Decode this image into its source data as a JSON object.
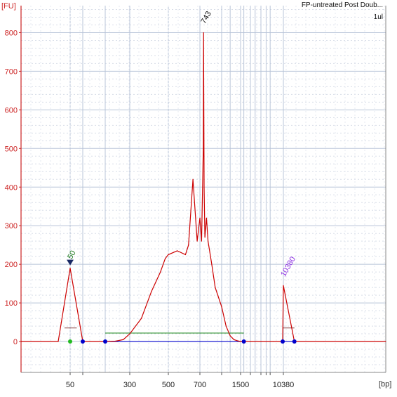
{
  "chart_data": {
    "type": "line",
    "title": "FP-untreated Post Doub...",
    "subtitle": "1ul",
    "ylabel": "[FU]",
    "xlabel": "[bp]",
    "x_scale": "electropherogram (nonlinear bp)",
    "ylim": [
      -80,
      870
    ],
    "y_ticks": [
      0,
      100,
      200,
      300,
      400,
      500,
      600,
      700,
      800
    ],
    "x_tick_labels": [
      "50",
      "300",
      "500",
      "700",
      "1500",
      "10380"
    ],
    "grid": true,
    "series": [
      {
        "color": "#cc0000",
        "x": [
          20,
          40,
          50,
          60,
          80,
          100,
          150,
          200,
          250,
          300,
          350,
          400,
          450,
          480,
          500,
          550,
          600,
          620,
          650,
          680,
          700,
          720,
          740,
          743,
          745,
          750,
          760,
          780,
          800,
          850,
          900,
          1000,
          1100,
          1200,
          1300,
          1400,
          1500,
          1700,
          2000,
          3000,
          6000,
          9000,
          10000,
          10380,
          10800,
          12000,
          15000
        ],
        "y": [
          0,
          0,
          190,
          0,
          0,
          0,
          0,
          1,
          5,
          20,
          60,
          130,
          180,
          215,
          225,
          235,
          225,
          250,
          420,
          260,
          320,
          260,
          500,
          800,
          700,
          400,
          270,
          320,
          260,
          200,
          140,
          90,
          40,
          15,
          5,
          2,
          0,
          0,
          0,
          0,
          0,
          0,
          0,
          145,
          0,
          0,
          0
        ]
      }
    ],
    "peak_labels": [
      {
        "text": "50",
        "color": "#1e7a1e"
      },
      {
        "text": "743",
        "color": "#111111"
      },
      {
        "text": "10380",
        "color": "#8a2be2"
      }
    ],
    "colors": {
      "axis": "#cc2222",
      "grid_major": "#b8c4d8",
      "grid_minor": "#d8dde8",
      "baseline_region": "#0000cc",
      "smear_region": "#1e8a1e"
    }
  }
}
